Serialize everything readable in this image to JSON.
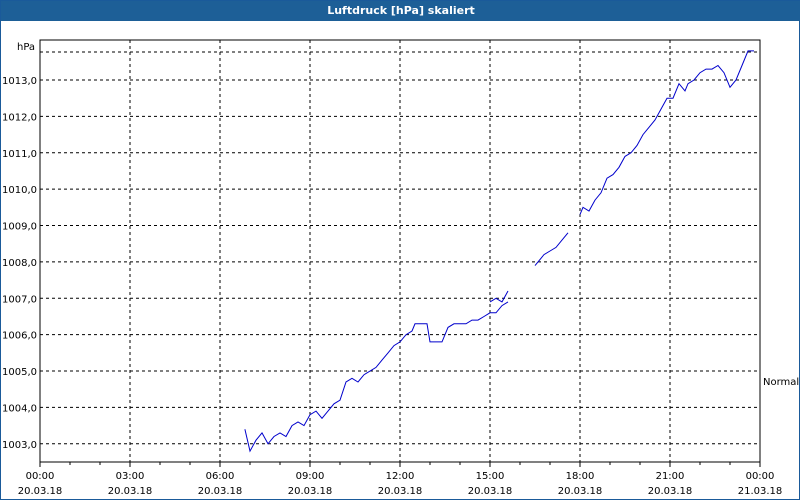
{
  "window": {
    "title": "Luftdruck [hPa] skaliert"
  },
  "chart_data": {
    "type": "line",
    "title": "Luftdruck [hPa] skaliert",
    "ylabel": "hPa",
    "xlabel": "",
    "ylim": [
      1002.5,
      1014.1
    ],
    "y_ticks": [
      "1003,0",
      "1004,0",
      "1005,0",
      "1006,0",
      "1007,0",
      "1008,0",
      "1009,0",
      "1010,0",
      "1011,0",
      "1012,0",
      "1013,0"
    ],
    "y_tick_values": [
      1003,
      1004,
      1005,
      1006,
      1007,
      1008,
      1009,
      1010,
      1011,
      1012,
      1013
    ],
    "x_range_hours": [
      0,
      24
    ],
    "x_ticks": [
      {
        "time": "00:00",
        "date": "20.03.18"
      },
      {
        "time": "03:00",
        "date": "20.03.18"
      },
      {
        "time": "06:00",
        "date": "20.03.18"
      },
      {
        "time": "09:00",
        "date": "20.03.18"
      },
      {
        "time": "12:00",
        "date": "20.03.18"
      },
      {
        "time": "15:00",
        "date": "20.03.18"
      },
      {
        "time": "18:00",
        "date": "20.03.18"
      },
      {
        "time": "21:00",
        "date": "20.03.18"
      },
      {
        "time": "00:00",
        "date": "21.03.18"
      }
    ],
    "grid": true,
    "right_label": "Normal",
    "line_color": "#0000cc",
    "series": [
      {
        "x": [
          6.83,
          7.0,
          7.2,
          7.4,
          7.6,
          7.8,
          8.0,
          8.2,
          8.4,
          8.6,
          8.8,
          9.0,
          9.2,
          9.4,
          9.6,
          9.8,
          10.0,
          10.2,
          10.4,
          10.6,
          10.8,
          11.0,
          11.2,
          11.4,
          11.6,
          11.8,
          12.0,
          12.2,
          12.4,
          12.5,
          12.7,
          12.9,
          13.0,
          13.2,
          13.4,
          13.6,
          13.8,
          14.0,
          14.2,
          14.4,
          14.6,
          14.8,
          15.0,
          15.2,
          15.4,
          15.6
        ],
        "y": [
          1003.4,
          1002.8,
          1003.1,
          1003.3,
          1003.0,
          1003.2,
          1003.3,
          1003.2,
          1003.5,
          1003.6,
          1003.5,
          1003.8,
          1003.9,
          1003.7,
          1003.9,
          1004.1,
          1004.2,
          1004.7,
          1004.8,
          1004.7,
          1004.9,
          1005.0,
          1005.1,
          1005.3,
          1005.5,
          1005.7,
          1005.8,
          1006.0,
          1006.1,
          1006.3,
          1006.3,
          1006.3,
          1005.8,
          1005.8,
          1005.8,
          1006.2,
          1006.3,
          1006.3,
          1006.3,
          1006.4,
          1006.4,
          1006.5,
          1006.6,
          1006.6,
          1006.8,
          1006.9
        ]
      },
      {
        "x": [
          15.0,
          15.2,
          15.4,
          15.6
        ],
        "y": [
          1006.9,
          1007.0,
          1006.9,
          1007.2
        ]
      },
      {
        "x": [
          16.5,
          16.7,
          16.8,
          17.0,
          17.2,
          17.4,
          17.6
        ],
        "y": [
          1007.9,
          1008.1,
          1008.2,
          1008.3,
          1008.4,
          1008.6,
          1008.8
        ]
      },
      {
        "x": [
          18.0,
          18.1,
          18.3,
          18.5,
          18.7,
          18.9,
          19.1,
          19.3,
          19.5,
          19.7,
          19.9,
          20.1,
          20.3,
          20.5,
          20.7,
          20.9,
          21.1,
          21.3,
          21.5,
          21.6,
          21.8,
          22.0,
          22.2,
          22.4,
          22.6,
          22.8,
          23.0,
          23.2,
          23.4,
          23.6,
          23.8
        ],
        "y": [
          1009.3,
          1009.5,
          1009.4,
          1009.7,
          1009.9,
          1010.3,
          1010.4,
          1010.6,
          1010.9,
          1011.0,
          1011.2,
          1011.5,
          1011.7,
          1011.9,
          1012.2,
          1012.5,
          1012.5,
          1012.9,
          1012.7,
          1012.9,
          1013.0,
          1013.2,
          1013.3,
          1013.3,
          1013.4,
          1013.2,
          1012.8,
          1013.0,
          1013.4,
          1013.8,
          1013.8
        ]
      }
    ]
  }
}
